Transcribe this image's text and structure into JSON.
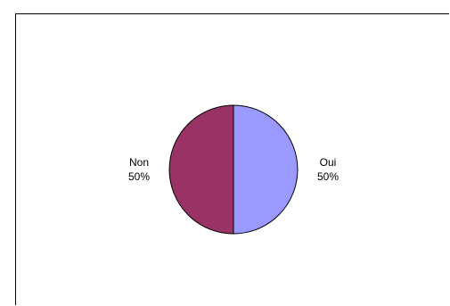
{
  "chart_data": {
    "type": "pie",
    "title": "",
    "slices": [
      {
        "label": "Oui",
        "value": 50,
        "percent_label": "50%",
        "color": "#9999ff"
      },
      {
        "label": "Non",
        "value": 50,
        "percent_label": "50%",
        "color": "#993366"
      }
    ],
    "start_angle_deg": 0,
    "direction": "clockwise",
    "stroke_color": "#000000",
    "legend": "none",
    "data_labels": "outside"
  }
}
